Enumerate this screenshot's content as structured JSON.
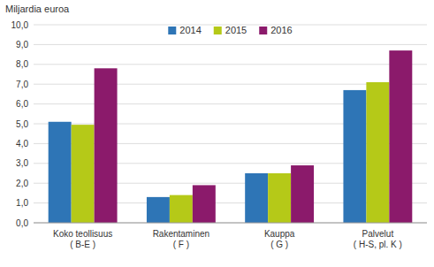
{
  "chart_data": {
    "type": "bar",
    "ylabel": "Miljardia euroa",
    "categories": [
      "Koko teollisuus\n( B-E )",
      "Rakentaminen\n( F )",
      "Kauppa\n( G )",
      "Palvelut\n( H-S, pl. K )"
    ],
    "series": [
      {
        "name": "2014",
        "color": "#2e75b6",
        "values": [
          5.1,
          1.3,
          2.5,
          6.7
        ]
      },
      {
        "name": "2015",
        "color": "#b5c918",
        "values": [
          4.95,
          1.4,
          2.5,
          7.1
        ]
      },
      {
        "name": "2016",
        "color": "#8b1a6b",
        "values": [
          7.8,
          1.9,
          2.9,
          8.7
        ]
      }
    ],
    "ylim": [
      0,
      10.0
    ],
    "yticks": [
      {
        "value": 0.0,
        "label": "0,0"
      },
      {
        "value": 1.0,
        "label": "1,0"
      },
      {
        "value": 2.0,
        "label": "2,0"
      },
      {
        "value": 3.0,
        "label": "3,0"
      },
      {
        "value": 4.0,
        "label": "4,0"
      },
      {
        "value": 5.0,
        "label": "5,0"
      },
      {
        "value": 6.0,
        "label": "6,0"
      },
      {
        "value": 7.0,
        "label": "7,0"
      },
      {
        "value": 8.0,
        "label": "8,0"
      },
      {
        "value": 9.0,
        "label": "9,0"
      },
      {
        "value": 10.0,
        "label": "10,0"
      }
    ],
    "grid": true,
    "legend": "upper center"
  }
}
